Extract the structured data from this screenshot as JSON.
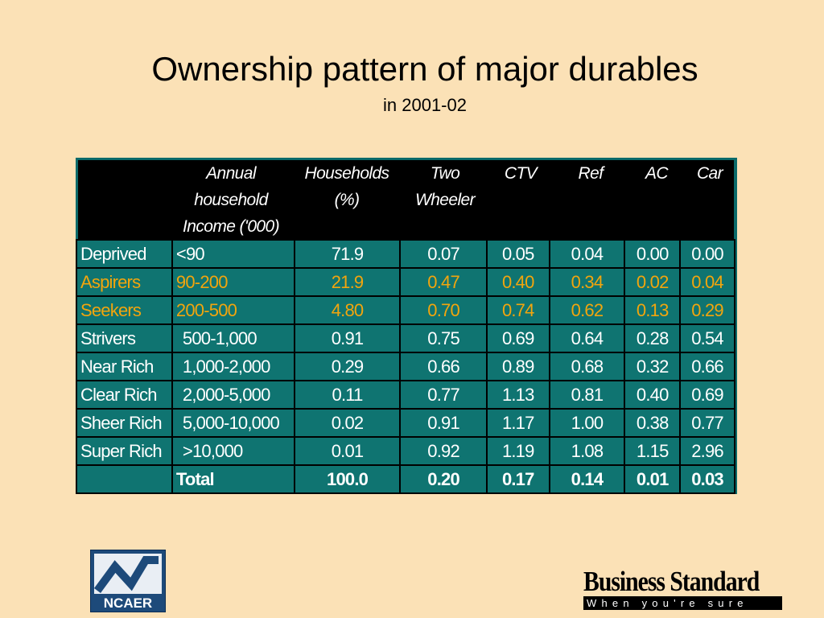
{
  "slide": {
    "title": "Ownership pattern of major durables",
    "subtitle": "in 2001-02"
  },
  "table": {
    "headers": {
      "income": [
        "Annual",
        "household",
        "Income ('000)"
      ],
      "households": [
        "Households",
        "(%)"
      ],
      "two_wheeler": [
        "Two",
        "Wheeler"
      ],
      "ctv": "CTV",
      "ref": "Ref",
      "ac": "AC",
      "car": "Car"
    },
    "rows": [
      {
        "cat": "Deprived",
        "income": "<90",
        "households": "71.9",
        "two_wheeler": "0.07",
        "ctv": "0.05",
        "ref": "0.04",
        "ac": "0.00",
        "car": "0.00"
      },
      {
        "cat": "Aspirers",
        "income": "90-200",
        "households": "21.9",
        "two_wheeler": "0.47",
        "ctv": "0.40",
        "ref": "0.34",
        "ac": "0.02",
        "car": "0.04"
      },
      {
        "cat": "Seekers",
        "income": "200-500",
        "households": "4.80",
        "two_wheeler": "0.70",
        "ctv": "0.74",
        "ref": "0.62",
        "ac": "0.13",
        "car": "0.29"
      },
      {
        "cat": "Strivers",
        "income": "500-1,000",
        "households": "0.91",
        "two_wheeler": "0.75",
        "ctv": "0.69",
        "ref": "0.64",
        "ac": "0.28",
        "car": "0.54"
      },
      {
        "cat": "Near Rich",
        "income": "1,000-2,000",
        "households": "0.29",
        "two_wheeler": "0.66",
        "ctv": "0.89",
        "ref": "0.68",
        "ac": "0.32",
        "car": "0.66"
      },
      {
        "cat": "Clear Rich",
        "income": "2,000-5,000",
        "households": "0.11",
        "two_wheeler": "0.77",
        "ctv": "1.13",
        "ref": "0.81",
        "ac": "0.40",
        "car": "0.69"
      },
      {
        "cat": "Sheer Rich",
        "income": "5,000-10,000",
        "households": "0.02",
        "two_wheeler": "0.91",
        "ctv": "1.17",
        "ref": "1.00",
        "ac": "0.38",
        "car": "0.77"
      },
      {
        "cat": "Super Rich",
        "income": ">10,000",
        "households": "0.01",
        "two_wheeler": "0.92",
        "ctv": "1.19",
        "ref": "1.08",
        "ac": "1.15",
        "car": "2.96"
      },
      {
        "cat": "",
        "income": "Total",
        "households": "100.0",
        "two_wheeler": "0.20",
        "ctv": "0.17",
        "ref": "0.14",
        "ac": "0.01",
        "car": "0.03"
      }
    ],
    "colors": {
      "cell": "#0f7471",
      "header": "#000000",
      "text": "#ffffff",
      "highlight": "#f2a50d"
    }
  },
  "logos": {
    "left": {
      "name": "ncaer-logo",
      "text": "NCAER"
    },
    "right": {
      "name": "business-standard-logo",
      "top": "Business Standard",
      "bottom": "When you're sure"
    }
  }
}
